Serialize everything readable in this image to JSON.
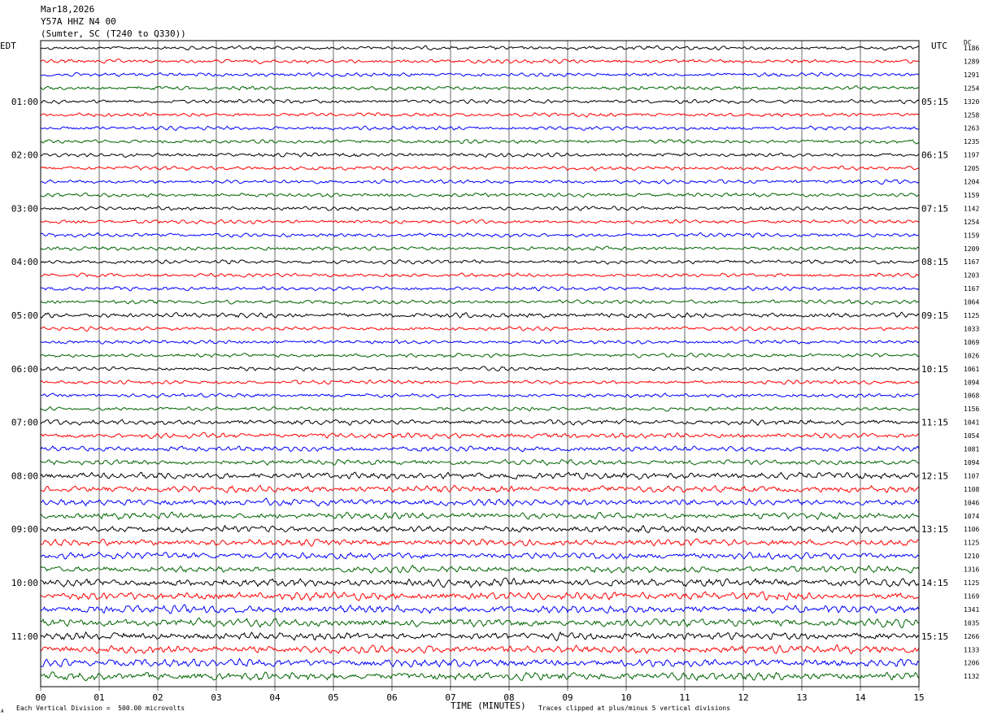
{
  "header": {
    "date": "Mar18,2026",
    "station": "Y57A HHZ N4 00",
    "location": "(Sumter, SC (T240 to Q330))"
  },
  "labels": {
    "left_tz": "EDT",
    "right_tz": "UTC",
    "dc": "DC"
  },
  "footer": {
    "xlabel": "TIME (MINUTES)",
    "scale_note": "Each Vertical Division =  500.00 microvolts",
    "clip_note": "Traces clipped at plus/minus 5 vertical divisions",
    "corner_mark": "A"
  },
  "chart_data": {
    "type": "line",
    "title": "Y57A HHZ N4 00",
    "xlabel": "TIME (MINUTES)",
    "xlim": [
      0,
      15
    ],
    "x_ticks": [
      "00",
      "01",
      "02",
      "03",
      "04",
      "05",
      "06",
      "07",
      "08",
      "09",
      "10",
      "11",
      "12",
      "13",
      "14",
      "15"
    ],
    "trace_colors": [
      "#000000",
      "#ff0000",
      "#0000ff",
      "#006400"
    ],
    "left_time_labels": [
      "01:00",
      "02:00",
      "03:00",
      "04:00",
      "05:00",
      "06:00",
      "07:00",
      "08:00",
      "09:00",
      "10:00",
      "11:00"
    ],
    "right_time_labels": [
      "05:15",
      "06:15",
      "07:15",
      "08:15",
      "09:15",
      "10:15",
      "11:15",
      "12:15",
      "13:15",
      "14:15",
      "15:15"
    ],
    "dc_offsets": [
      1186,
      1289,
      1291,
      1254,
      1320,
      1258,
      1263,
      1235,
      1197,
      1205,
      1204,
      1159,
      1142,
      1254,
      1159,
      1209,
      1167,
      1203,
      1167,
      1064,
      1125,
      1033,
      1069,
      1026,
      1061,
      1094,
      1068,
      1156,
      1041,
      1054,
      1081,
      1094,
      1107,
      1108,
      1046,
      1074,
      1106,
      1125,
      1210,
      1316,
      1125,
      1169,
      1341,
      1035,
      1266,
      1133,
      1206,
      1132
    ],
    "trace_amplitudes": [
      3,
      3,
      3,
      3,
      3,
      3,
      3,
      3,
      3,
      3,
      3,
      3,
      3,
      3,
      3,
      3,
      3,
      3,
      3,
      3,
      4,
      3,
      3,
      3,
      3,
      3,
      3,
      3,
      4,
      4,
      4,
      4,
      5,
      5,
      5,
      5,
      5,
      5,
      5,
      5,
      6,
      6,
      6,
      6,
      6,
      6,
      6,
      6
    ]
  }
}
